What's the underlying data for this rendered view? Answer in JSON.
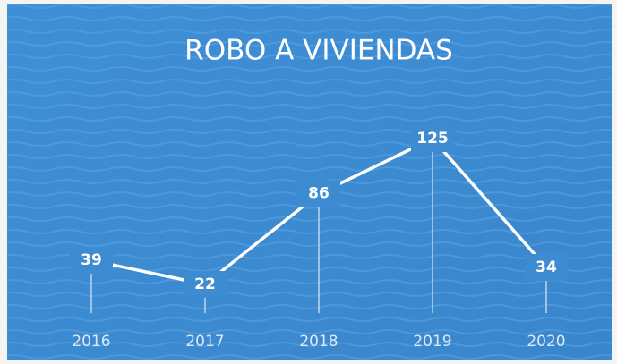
{
  "chart_data": {
    "type": "line",
    "title": "ROBO A VIVIENDAS",
    "categories": [
      "2016",
      "2017",
      "2018",
      "2019",
      "2020"
    ],
    "values": [
      39,
      22,
      86,
      125,
      34
    ],
    "color": "#ffffff"
  }
}
